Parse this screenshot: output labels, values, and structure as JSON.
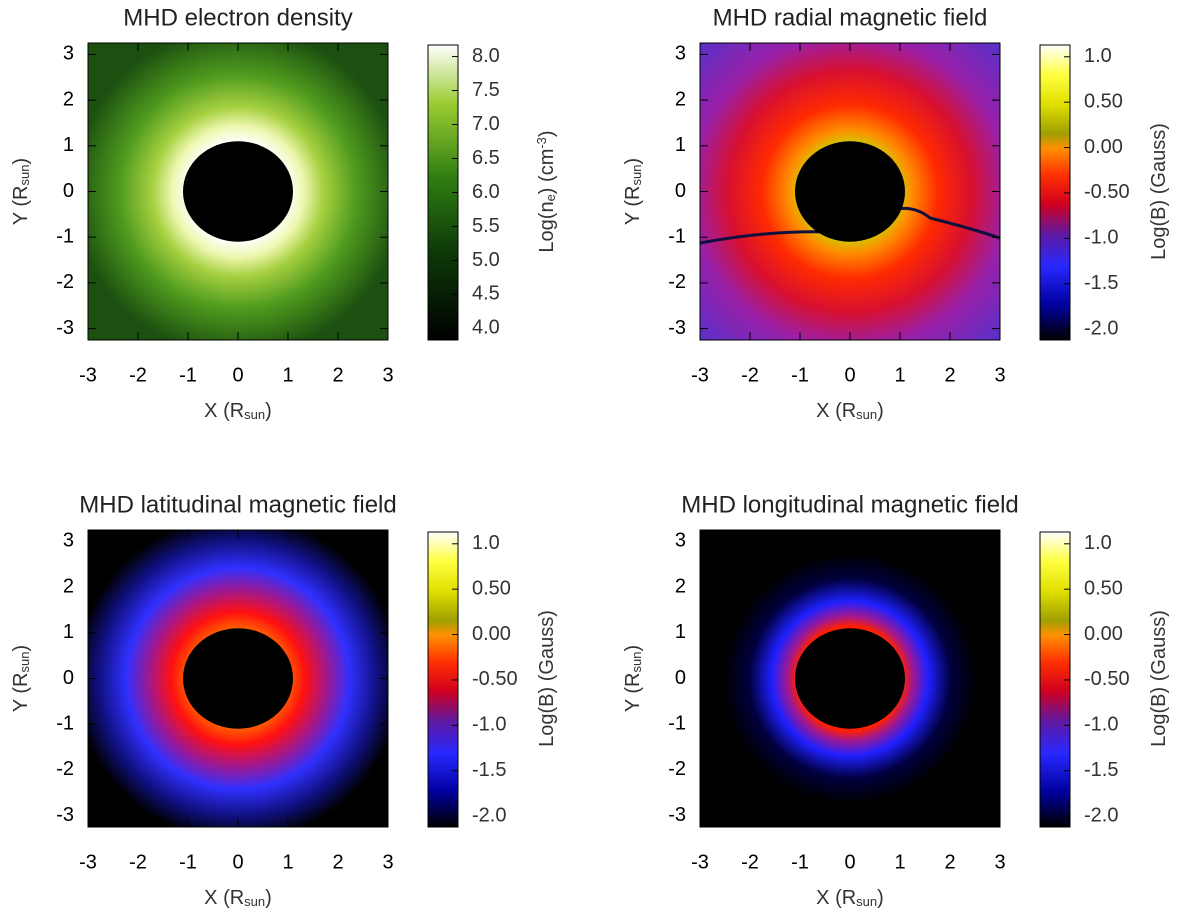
{
  "chart_data": [
    {
      "type": "heatmap",
      "title": "MHD electron density",
      "xlabel": [
        "X (R",
        "sun",
        ")"
      ],
      "ylabel": [
        "Y (R",
        "sun",
        ")"
      ],
      "xlim": [
        -3,
        3
      ],
      "ylim": [
        -3.25,
        3.25
      ],
      "xticks": [
        -3,
        -2,
        -1,
        0,
        1,
        2,
        3
      ],
      "yticks": [
        -3,
        -2,
        -1,
        0,
        1,
        2,
        3
      ],
      "cbar_label": [
        "Log(n",
        "e",
        ") (cm",
        "-3",
        ")"
      ],
      "cbar_lim": [
        3.83,
        8.17
      ],
      "cbar_ticks": [
        {
          "value": 4,
          "label": "4.0"
        },
        4.5,
        {
          "value": 5,
          "label": "5.0"
        },
        5.5,
        {
          "value": 6,
          "label": "6.0"
        },
        6.5,
        {
          "value": 7,
          "label": "7.0"
        },
        7.5,
        {
          "value": 8,
          "label": "8.0"
        }
      ]
    },
    {
      "type": "heatmap",
      "title": "MHD radial magnetic field",
      "xlabel": [
        "X (R",
        "sun",
        ")"
      ],
      "ylabel": [
        "Y (R",
        "sun",
        ")"
      ],
      "xlim": [
        -3,
        3
      ],
      "ylim": [
        -3.25,
        3.25
      ],
      "xticks": [
        -3,
        -2,
        -1,
        0,
        1,
        2,
        3
      ],
      "yticks": [
        -3,
        -2,
        -1,
        0,
        1,
        2,
        3
      ],
      "cbar_label": [
        "Log(B) (Gauss)"
      ],
      "cbar_lim": [
        -2.12,
        1.13
      ],
      "cbar_ticks": [
        {
          "value": -2,
          "label": "-2.0"
        },
        -1.5,
        {
          "value": -1,
          "label": "-1.0"
        },
        {
          "value": -0.5,
          "label": "-0.50"
        },
        {
          "value": 0,
          "label": "0.00"
        },
        {
          "value": 0.5,
          "label": "0.50"
        },
        {
          "value": 1,
          "label": "1.0"
        }
      ]
    },
    {
      "type": "heatmap",
      "title": "MHD latitudinal magnetic field",
      "xlabel": [
        "X (R",
        "sun",
        ")"
      ],
      "ylabel": [
        "Y (R",
        "sun",
        ")"
      ],
      "xlim": [
        -3,
        3
      ],
      "ylim": [
        -3.25,
        3.25
      ],
      "xticks": [
        -3,
        -2,
        -1,
        0,
        1,
        2,
        3
      ],
      "yticks": [
        -3,
        -2,
        -1,
        0,
        1,
        2,
        3
      ],
      "cbar_label": [
        "Log(B) (Gauss)"
      ],
      "cbar_lim": [
        -2.12,
        1.13
      ],
      "cbar_ticks": [
        {
          "value": -2,
          "label": "-2.0"
        },
        -1.5,
        {
          "value": -1,
          "label": "-1.0"
        },
        {
          "value": -0.5,
          "label": "-0.50"
        },
        {
          "value": 0,
          "label": "0.00"
        },
        {
          "value": 0.5,
          "label": "0.50"
        },
        {
          "value": 1,
          "label": "1.0"
        }
      ]
    },
    {
      "type": "heatmap",
      "title": "MHD longitudinal magnetic field",
      "xlabel": [
        "X (R",
        "sun",
        ")"
      ],
      "ylabel": [
        "Y (R",
        "sun",
        ")"
      ],
      "xlim": [
        -3,
        3
      ],
      "ylim": [
        -3.25,
        3.25
      ],
      "xticks": [
        -3,
        -2,
        -1,
        0,
        1,
        2,
        3
      ],
      "yticks": [
        -3,
        -2,
        -1,
        0,
        1,
        2,
        3
      ],
      "cbar_label": [
        "Log(B) (Gauss)"
      ],
      "cbar_lim": [
        -2.12,
        1.13
      ],
      "cbar_ticks": [
        {
          "value": -2,
          "label": "-2.0"
        },
        -1.5,
        {
          "value": -1,
          "label": "-1.0"
        },
        {
          "value": -0.5,
          "label": "-0.50"
        },
        {
          "value": 0,
          "label": "0.00"
        },
        {
          "value": 0.5,
          "label": "0.50"
        },
        {
          "value": 1,
          "label": "1.0"
        }
      ]
    }
  ]
}
